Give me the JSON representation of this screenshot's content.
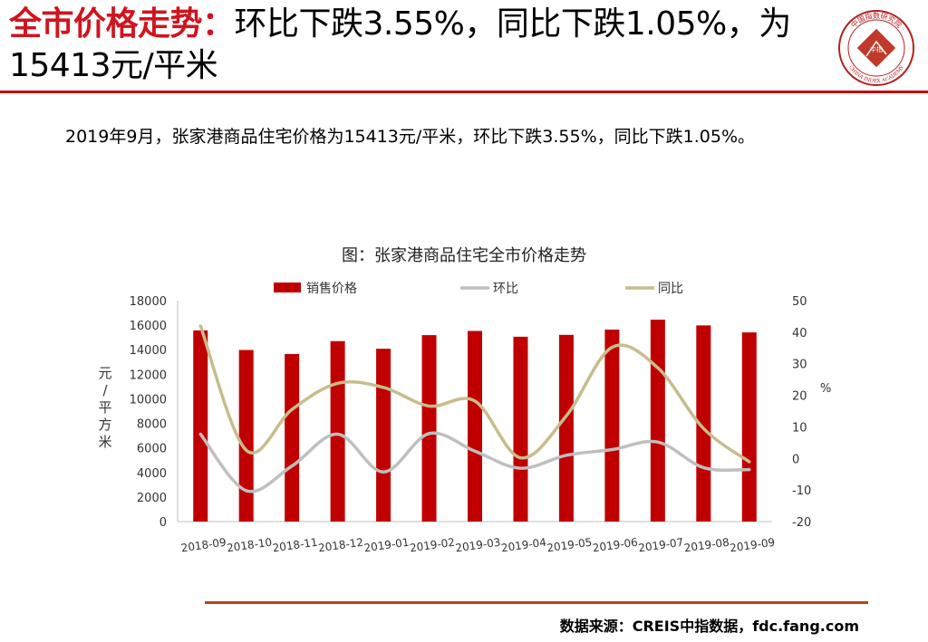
{
  "header": {
    "title_highlight": "全市价格走势：",
    "title_rest": "环比下跌3.55%，同比下跌1.05%，为15413元/平米"
  },
  "logo": {
    "icon": "china-index-academy-seal",
    "text_top": "中国指数研究院",
    "text_bottom": "CHINA INDEX ACADEMY",
    "center": "中指",
    "color": "#b22222"
  },
  "summary": "2019年9月，张家港商品住宅价格为15413元/平米，环比下跌3.55%，同比下跌1.05%。",
  "source": "数据来源：CREIS中指数据，fdc.fang.com",
  "chart_data": {
    "type": "bar",
    "title": "图：张家港商品住宅全市价格走势",
    "categories": [
      "2018-09",
      "2018-10",
      "2018-11",
      "2018-12",
      "2019-01",
      "2019-02",
      "2019-03",
      "2019-04",
      "2019-05",
      "2019-06",
      "2019-07",
      "2019-08",
      "2019-09"
    ],
    "ylabel_left": "元/平方米",
    "ylabel_right": "%",
    "ylim_left": [
      0,
      18000
    ],
    "yticks_left": [
      0,
      2000,
      4000,
      6000,
      8000,
      10000,
      12000,
      14000,
      16000,
      18000
    ],
    "ylim_right": [
      -20,
      50
    ],
    "yticks_right": [
      -20,
      -10,
      0,
      10,
      20,
      30,
      40,
      50
    ],
    "legend_position": "top",
    "grid": false,
    "series": [
      {
        "name": "销售价格",
        "type": "bar",
        "axis": "left",
        "color": "#c00000",
        "values": [
          15577,
          13980,
          13650,
          14700,
          14080,
          15190,
          15530,
          15060,
          15210,
          15640,
          16450,
          15980,
          15413
        ]
      },
      {
        "name": "环比",
        "type": "line",
        "axis": "right",
        "color": "#bfbfbf",
        "values": [
          7.7,
          -10.2,
          -2.4,
          7.7,
          -4.3,
          7.9,
          2.3,
          -3.1,
          1.0,
          2.8,
          5.2,
          -2.9,
          -3.55
        ]
      },
      {
        "name": "同比",
        "type": "line",
        "axis": "right",
        "color": "#c8bc8c",
        "values": [
          42.0,
          2.6,
          15.5,
          23.8,
          22.5,
          16.6,
          18.2,
          0.2,
          13.5,
          35.2,
          28.7,
          9.5,
          -1.05
        ]
      }
    ]
  }
}
